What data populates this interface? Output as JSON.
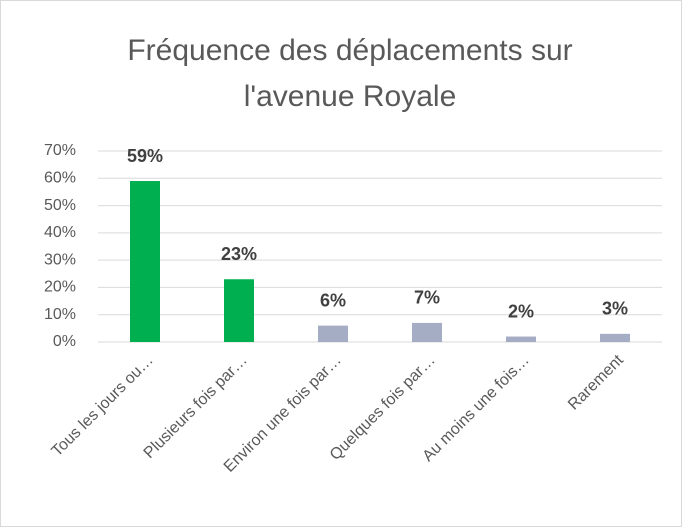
{
  "chart_data": {
    "type": "bar",
    "title": "Fréquence des déplacements sur l'avenue Royale",
    "categories": [
      "Tous les jours ou…",
      "Plusieurs fois par…",
      "Environ une fois par…",
      "Quelques fois par…",
      "Au moins une fois…",
      "Rarement"
    ],
    "values": [
      59,
      23,
      6,
      7,
      2,
      3
    ],
    "value_labels": [
      "59%",
      "23%",
      "6%",
      "7%",
      "2%",
      "3%"
    ],
    "colors": [
      "#00b050",
      "#00b050",
      "#a5adc4",
      "#a5adc4",
      "#a5adc4",
      "#a5adc4"
    ],
    "ylim": [
      0,
      70
    ],
    "yticks": [
      {
        "value": 0,
        "label": "0%"
      },
      {
        "value": 10,
        "label": "10%"
      },
      {
        "value": 20,
        "label": "20%"
      },
      {
        "value": 30,
        "label": "30%"
      },
      {
        "value": 40,
        "label": "40%"
      },
      {
        "value": 50,
        "label": "50%"
      },
      {
        "value": 60,
        "label": "60%"
      },
      {
        "value": 70,
        "label": "70%"
      }
    ],
    "grid": true
  }
}
